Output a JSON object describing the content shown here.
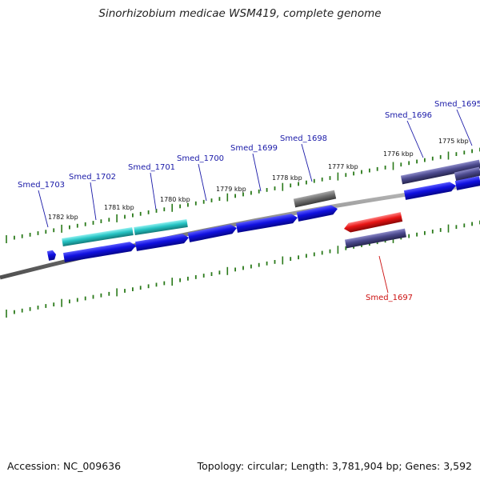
{
  "title": "Sinorhizobium medicae WSM419, complete genome",
  "footer": {
    "accession": "Accession: NC_009636",
    "summary": "Topology: circular; Length: 3,781,904 bp; Genes: 3,592"
  },
  "colors": {
    "cds": "#1010e0",
    "cds_highlight": "#26c4c4",
    "gene_gray": "#707070",
    "gene_purple": "#4c4a8e",
    "gene_red": "#e81414",
    "tick": "#2a7a1a",
    "backbone": "#808080",
    "label_blue": "#1a1aa8",
    "label_red": "#cc1010"
  },
  "scale_labels": [
    {
      "text": "1782 kbp"
    },
    {
      "text": "1781 kbp"
    },
    {
      "text": "1780 kbp"
    },
    {
      "text": "1779 kbp"
    },
    {
      "text": "1778 kbp"
    },
    {
      "text": "1777 kbp"
    },
    {
      "text": "1776 kbp"
    },
    {
      "text": "1775 kbp"
    }
  ],
  "gene_labels": [
    {
      "text": "Smed_1703",
      "color": "blue"
    },
    {
      "text": "Smed_1702",
      "color": "blue"
    },
    {
      "text": "Smed_1701",
      "color": "blue"
    },
    {
      "text": "Smed_1700",
      "color": "blue"
    },
    {
      "text": "Smed_1699",
      "color": "blue"
    },
    {
      "text": "Smed_1698",
      "color": "blue"
    },
    {
      "text": "Smed_1696",
      "color": "blue"
    },
    {
      "text": "Smed_1695",
      "color": "blue"
    },
    {
      "text": "Smed_1697",
      "color": "red"
    }
  ]
}
